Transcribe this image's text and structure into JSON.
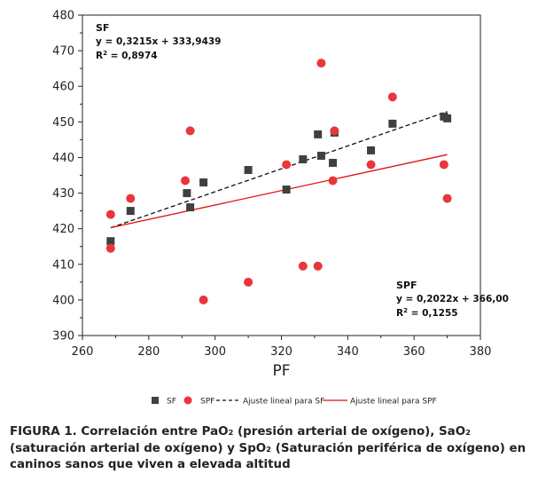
{
  "chart_data": {
    "type": "scatter",
    "xlabel": "PF",
    "ylabel": "",
    "xlim": [
      260,
      380
    ],
    "ylim": [
      390,
      480
    ],
    "xticks": [
      "260",
      "280",
      "300",
      "320",
      "340",
      "360",
      "380"
    ],
    "yticks": [
      "390",
      "400",
      "410",
      "420",
      "430",
      "440",
      "450",
      "460",
      "470",
      "480"
    ],
    "grid": false,
    "legend_position": "bottom",
    "series": [
      {
        "name": "SF",
        "marker": "square",
        "color": "#404040",
        "x": [
          268.5,
          274.5,
          291.5,
          292.5,
          296.5,
          310,
          321.5,
          326.5,
          331,
          332,
          335.5,
          336,
          347,
          353.5,
          369,
          370
        ],
        "y": [
          416.5,
          425,
          430,
          426,
          433,
          436.5,
          431,
          439.5,
          446.5,
          440.5,
          438.5,
          447,
          442,
          449.5,
          451.5,
          451
        ]
      },
      {
        "name": "SPF",
        "marker": "circle",
        "color": "#e8363b",
        "x": [
          268.5,
          268.5,
          274.5,
          291,
          292.5,
          296.5,
          310,
          321.5,
          326.5,
          331,
          332,
          335.5,
          336,
          347,
          353.5,
          369,
          370
        ],
        "y": [
          424,
          414.5,
          428.5,
          433.5,
          447.5,
          400,
          405,
          438,
          409.5,
          409.5,
          466.5,
          433.5,
          447.5,
          438,
          457,
          438,
          428.5
        ]
      }
    ],
    "fits": [
      {
        "name": "Ajuste lineal para SF",
        "style": "dashed",
        "color": "#111111",
        "slope": 0.3215,
        "intercept": 333.9439,
        "x_range": [
          268.5,
          370
        ],
        "label_title": "SF",
        "equation": "y = 0,3215x + 333,9439",
        "r2_label": "R",
        "r2_value": " = 0,8974"
      },
      {
        "name": "Ajuste lineal para SPF",
        "style": "solid",
        "color": "#e01010",
        "slope": 0.2022,
        "intercept": 366.0,
        "x_range": [
          268.5,
          370
        ],
        "label_title": "SPF",
        "equation": "y = 0,2022x + 366,00",
        "r2_label": "R",
        "r2_value": " = 0,1255"
      }
    ]
  },
  "caption": {
    "figure_label": "FIGURA 1.",
    "text": "Correlación entre PaO₂ (presión arterial de oxígeno), SaO₂ (saturación arterial de oxígeno) y SpO₂ (Saturación periférica de oxígeno) en caninos sanos que viven a elevada altitud"
  }
}
